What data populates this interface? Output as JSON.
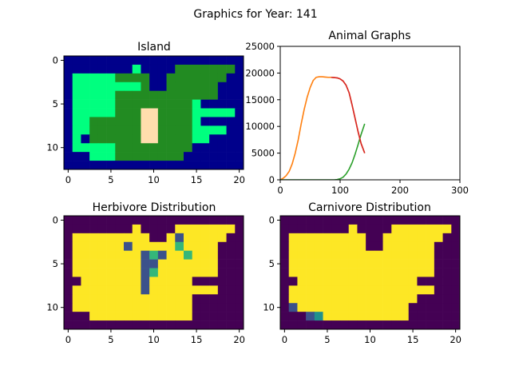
{
  "suptitle": "Graphics for Year: 141",
  "colors": {
    "water": "#00008b",
    "lowland": "#00ff7f",
    "highland": "#228b22",
    "desert": "#ffdead",
    "dist_low": "#440154",
    "dist_high": "#fde725",
    "herbivore_line": "#ff7f0e",
    "carnivore_line": "#2ca02c",
    "extra_line": "#d62728"
  },
  "chart_data": [
    {
      "type": "heatmap",
      "title": "Island",
      "legend": "the map's own letter codes: W water, L lowland, H highland, D desert",
      "xticks": [
        0,
        5,
        10,
        15,
        20
      ],
      "yticks": [
        0,
        5,
        10
      ],
      "grid": false,
      "rows": [
        "WWWWWWWWWWWWWWWWWWWWW",
        "WWWWWWWWLWWWWHHHHHHHW",
        "WLLLLLHHHHWWHHHHHHHWW",
        "WLLLLLLLLHWWHHHHHHWWW",
        "WLLLLLHHHHHHHHHHHHWWW",
        "WLLLLLHHHHHHHHHLWWWWW",
        "WLLLLLHHHDDHHHHLLLLLW",
        "WLLHHHHHHDDHHHHLWWWWW",
        "WLLHHHHHHDDHHHHLLLLWW",
        "WLWHHHHHHDDHHHHLLWWWW",
        "WLLLLLHHHHHHHHHWWWWWW",
        "WWWLLLHHHHHHHHWWWWWWW",
        "WWWWWWWWWWWWWWWWWWWWW"
      ]
    },
    {
      "type": "line",
      "title": "Animal Graphs",
      "xlim": [
        0,
        300
      ],
      "ylim": [
        0,
        25000
      ],
      "xticks": [
        0,
        100,
        200,
        300
      ],
      "yticks": [
        0,
        5000,
        10000,
        15000,
        20000,
        25000
      ],
      "ytick_labels": [
        "0",
        "5000",
        "10000",
        "15000",
        "20000",
        "25000"
      ],
      "grid": false,
      "series": [
        {
          "color_key": "herbivore_line",
          "x": [
            0,
            5,
            10,
            15,
            20,
            25,
            30,
            35,
            40,
            45,
            50,
            55,
            60,
            65,
            70,
            75,
            80,
            85,
            90,
            95,
            100,
            105,
            110,
            115,
            120,
            125,
            130,
            135,
            141
          ],
          "y": [
            0,
            300,
            800,
            1600,
            3000,
            5000,
            7500,
            10500,
            13200,
            15500,
            17300,
            18600,
            19200,
            19300,
            19300,
            19250,
            19200,
            19200,
            19150,
            19100,
            18900,
            18500,
            17700,
            16300,
            14000,
            11500,
            9000,
            6800,
            5000
          ]
        },
        {
          "color_key": "carnivore_line",
          "x": [
            0,
            10,
            20,
            30,
            40,
            50,
            60,
            70,
            80,
            90,
            95,
            100,
            105,
            110,
            115,
            120,
            125,
            130,
            135,
            141
          ],
          "y": [
            0,
            0,
            0,
            0,
            0,
            0,
            0,
            0,
            0,
            0,
            50,
            200,
            500,
            1100,
            2000,
            3200,
            4800,
            6600,
            8500,
            10500
          ]
        },
        {
          "color_key": "extra_line",
          "x": [
            85,
            90,
            95,
            100,
            105,
            110,
            115,
            120,
            125,
            130,
            135,
            141
          ],
          "y": [
            19200,
            19150,
            19100,
            18900,
            18500,
            17700,
            16300,
            14000,
            11500,
            9000,
            6800,
            5000
          ]
        }
      ]
    },
    {
      "type": "heatmap",
      "title": "Herbivore Distribution",
      "legend": "level 0 = dark purple, 1 = teal, 2 = green, 3 = yellow",
      "xticks": [
        0,
        5,
        10,
        15,
        20
      ],
      "yticks": [
        0,
        5,
        10
      ],
      "grid": false,
      "rows": [
        "000000000000000000000",
        "000000003000033333330",
        "033333333300313333300",
        "033333313333323333000",
        "033333333121332333000",
        "033333333113333333000",
        "033333333123333333000",
        "003333333133333000000",
        "033333333133333333000",
        "033333333333333000000",
        "033333333333333000000",
        "000333333333333000000",
        "000000000000000000000"
      ]
    },
    {
      "type": "heatmap",
      "title": "Carnivore Distribution",
      "legend": "level 0 = dark purple, 1 = indigo, 2 = teal, 3 = yellow",
      "xticks": [
        0,
        5,
        10,
        15,
        20
      ],
      "yticks": [
        0,
        5,
        10
      ],
      "grid": false,
      "rows": [
        "000000000000000000000",
        "000000003000033333330",
        "033333333300333333300",
        "033333333300333333000",
        "033333333333333333000",
        "033333333333333333000",
        "033333333333333333000",
        "003333333333333300000",
        "033333333333333333000",
        "033333333333333300000",
        "013333333333333000000",
        "000123333333333000000",
        "000000000000000000000"
      ]
    }
  ]
}
